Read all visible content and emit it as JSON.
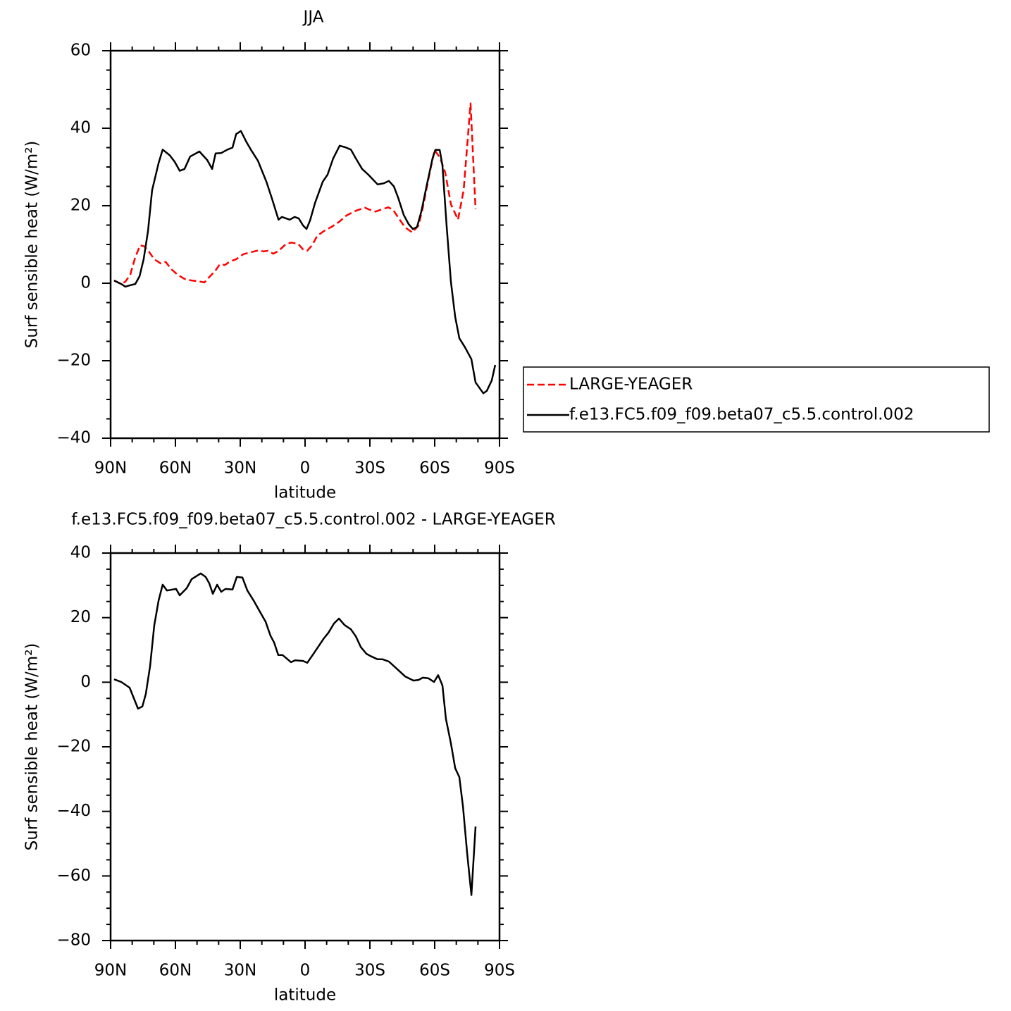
{
  "chart_data": [
    {
      "type": "line",
      "title": "JJA",
      "xlabel": "latitude",
      "ylabel": "Surf sensible heat (W/m²)",
      "xlim": [
        90,
        -90
      ],
      "xticks": [
        {
          "value": 90,
          "label": "90N"
        },
        {
          "value": 60,
          "label": "60N"
        },
        {
          "value": 30,
          "label": "30N"
        },
        0,
        {
          "value": -30,
          "label": "30S"
        },
        {
          "value": -60,
          "label": "60S"
        },
        {
          "value": -90,
          "label": "90S"
        }
      ],
      "ylim": [
        -40,
        60
      ],
      "yticks": [
        {
          "value": -40,
          "label": "−40"
        },
        {
          "value": -20,
          "label": "−20"
        },
        0,
        20,
        40,
        60
      ],
      "legend": "outside-right",
      "series": [
        {
          "name": "LARGE-YEAGER",
          "color": "#ff0000",
          "linestyle": "dashed",
          "x": [
            88.4,
            85.1,
            83.2,
            80.9,
            78.6,
            76.3,
            74.3,
            72.1,
            69.8,
            66.8,
            64.5,
            61.9,
            59.0,
            55.8,
            52.5,
            49.2,
            46.6,
            44.3,
            41.7,
            39.4,
            37.1,
            34.8,
            31.9,
            28.6,
            25.1,
            21.5,
            19.2,
            17.0,
            14.7,
            12.1,
            9.1,
            6.5,
            3.3,
            0.9,
            -1.0,
            -3.3,
            -5.6,
            -8.8,
            -12.1,
            -15.7,
            -19.2,
            -23.5,
            -27.7,
            -30.3,
            -32.6,
            -35.9,
            -38.5,
            -40.8,
            -43.4,
            -46.3,
            -49.6,
            -52.5,
            -54.5,
            -57.7,
            -60.0,
            -62.6,
            -64.9,
            -67.5,
            -70.8,
            -73.4,
            -76.6,
            -78.9
          ],
          "values": [
            0.7,
            -0.2,
            0.4,
            2.2,
            6.7,
            9.8,
            9.5,
            8,
            6.2,
            5.1,
            5.5,
            3.6,
            2.2,
            1.1,
            0.7,
            0.5,
            0.2,
            1.6,
            3.1,
            4.9,
            4.7,
            5.6,
            6.2,
            7.5,
            8,
            8.5,
            8.2,
            8.4,
            7.6,
            8.4,
            10,
            10.5,
            10.2,
            8.7,
            8.4,
            9.8,
            12.2,
            13.5,
            14.5,
            15.8,
            17.5,
            18.7,
            19.5,
            18.9,
            18.5,
            19.1,
            19.6,
            18.9,
            16.7,
            14.4,
            13.1,
            14.9,
            19.5,
            28.5,
            34.4,
            32.2,
            28.5,
            20.4,
            16.4,
            24,
            46.4,
            19.1
          ]
        },
        {
          "name": "f.e13.FC5.f09_f09.beta07_c5.5.control.002",
          "color": "#000000",
          "linestyle": "solid",
          "x": [
            88.4,
            85.1,
            83.2,
            80.9,
            78.6,
            76.6,
            74.7,
            72.7,
            70.8,
            67.8,
            65.9,
            62.6,
            60.3,
            58.0,
            55.8,
            53.2,
            48.9,
            45.3,
            43.0,
            41.4,
            38.8,
            35.9,
            33.6,
            31.9,
            29.7,
            27.1,
            25.1,
            21.8,
            17.9,
            15.3,
            12.3,
            10.7,
            7.1,
            4.8,
            2.9,
            0.9,
            -0.7,
            -2.3,
            -4.6,
            -8.2,
            -10.4,
            -13.0,
            -16.0,
            -18.6,
            -21.2,
            -23.5,
            -26.4,
            -29.3,
            -33.6,
            -36.5,
            -38.8,
            -41.1,
            -43.0,
            -45.7,
            -47.9,
            -49.9,
            -51.8,
            -53.8,
            -56.4,
            -59.0,
            -60.3,
            -62.3,
            -63.6,
            -65.5,
            -67.5,
            -69.5,
            -71.4,
            -74.0,
            -77.0,
            -78.9,
            -82.5,
            -84.1,
            -86.4,
            -88.0
          ],
          "values": [
            0.7,
            -0.2,
            -0.9,
            -0.5,
            -0.2,
            1.8,
            6.2,
            13.5,
            24,
            31,
            34.5,
            33,
            31.3,
            29,
            29.5,
            32.7,
            34,
            31.8,
            29.5,
            33.5,
            33.6,
            34.5,
            35,
            38.5,
            39.3,
            36.4,
            34.5,
            31.6,
            26.2,
            21.8,
            16.4,
            17.1,
            16.4,
            17.1,
            16.7,
            14.9,
            14,
            16.2,
            20.7,
            26.2,
            28,
            32.2,
            35.5,
            35.1,
            34.5,
            32.2,
            29.5,
            28,
            25.5,
            25.8,
            26.4,
            25,
            22.2,
            17.6,
            15.3,
            14,
            14.5,
            18.5,
            25.5,
            32.2,
            34.4,
            34.4,
            30.4,
            14.9,
            0.4,
            -8.7,
            -14.2,
            -16.5,
            -19.6,
            -25.6,
            -28.4,
            -27.8,
            -25.1,
            -21.1
          ]
        }
      ]
    },
    {
      "type": "line",
      "title": "f.e13.FC5.f09_f09.beta07_c5.5.control.002 - LARGE-YEAGER",
      "xlabel": "latitude",
      "ylabel": "Surf sensible heat (W/m²)",
      "xlim": [
        90,
        -90
      ],
      "xticks": [
        {
          "value": 90,
          "label": "90N"
        },
        {
          "value": 60,
          "label": "60N"
        },
        {
          "value": 30,
          "label": "30N"
        },
        0,
        {
          "value": -30,
          "label": "30S"
        },
        {
          "value": -60,
          "label": "60S"
        },
        {
          "value": -90,
          "label": "90S"
        }
      ],
      "ylim": [
        -80,
        40
      ],
      "yticks": [
        {
          "value": -80,
          "label": "−80"
        },
        {
          "value": -60,
          "label": "−60"
        },
        {
          "value": -40,
          "label": "−40"
        },
        {
          "value": -20,
          "label": "−20"
        },
        0,
        20,
        40
      ],
      "series": [
        {
          "color": "#000000",
          "linestyle": "solid",
          "x": [
            88.4,
            85.1,
            81.2,
            77.3,
            75.3,
            73.7,
            71.7,
            69.8,
            67.8,
            65.9,
            63.9,
            59.7,
            58.0,
            54.8,
            52.5,
            48.3,
            46.0,
            44.3,
            42.7,
            40.7,
            38.8,
            36.8,
            33.6,
            31.6,
            29.0,
            26.7,
            23.8,
            20.2,
            18.3,
            16.0,
            14.3,
            12.4,
            10.4,
            6.5,
            4.6,
            0.9,
            -1.0,
            -4.3,
            -8.5,
            -10.8,
            -13.4,
            -15.7,
            -18.3,
            -21.2,
            -23.5,
            -25.8,
            -28.4,
            -30.3,
            -33.6,
            -35.9,
            -38.8,
            -42.1,
            -46.3,
            -50.2,
            -52.5,
            -54.5,
            -57.1,
            -59.7,
            -61.6,
            -63.6,
            -65.2,
            -67.5,
            -69.5,
            -71.4,
            -73.1,
            -75.0,
            -77.0,
            -78.9
          ],
          "values": [
            0.9,
            0.1,
            -1.7,
            -8.2,
            -7.5,
            -3.6,
            5.1,
            17.5,
            25.3,
            30.2,
            28.4,
            28.9,
            26.9,
            29.1,
            31.9,
            33.7,
            32.6,
            30.6,
            27.4,
            30.2,
            28.0,
            28.9,
            28.7,
            32.6,
            32.4,
            28.4,
            25.3,
            21,
            18.8,
            14.4,
            12.3,
            8.4,
            8.4,
            6.2,
            6.8,
            6.6,
            6,
            9.2,
            13.4,
            15.3,
            18.2,
            19.7,
            17.7,
            16.4,
            14.2,
            10.9,
            8.8,
            8.1,
            7.1,
            7.1,
            6.4,
            4.4,
            1.8,
            0.5,
            0.7,
            1.4,
            1.2,
            0.1,
            2.2,
            -1,
            -11.3,
            -18.9,
            -26.6,
            -29.4,
            -38.6,
            -52.8,
            -65.9,
            -44.7
          ]
        }
      ]
    }
  ]
}
